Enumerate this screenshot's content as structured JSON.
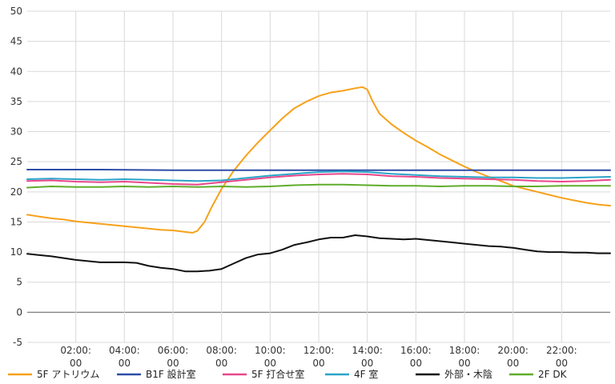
{
  "chart_data": {
    "type": "line",
    "title": "",
    "xlabel": "",
    "ylabel": "",
    "ylim": [
      -5,
      50
    ],
    "yticks": [
      -5,
      0,
      5,
      10,
      15,
      20,
      25,
      30,
      35,
      40,
      45,
      50
    ],
    "xlim": [
      0,
      24
    ],
    "xticks": [
      {
        "x": 2,
        "line1": "02:00:",
        "line2": "00"
      },
      {
        "x": 4,
        "line1": "04:00:",
        "line2": "00"
      },
      {
        "x": 6,
        "line1": "06:00:",
        "line2": "00"
      },
      {
        "x": 8,
        "line1": "08:00:",
        "line2": "00"
      },
      {
        "x": 10,
        "line1": "10:00:",
        "line2": "00"
      },
      {
        "x": 12,
        "line1": "12:00:",
        "line2": "00"
      },
      {
        "x": 14,
        "line1": "14:00:",
        "line2": "00"
      },
      {
        "x": 16,
        "line1": "16:00:",
        "line2": "00"
      },
      {
        "x": 18,
        "line1": "18:00:",
        "line2": "00"
      },
      {
        "x": 20,
        "line1": "20:00:",
        "line2": "00"
      },
      {
        "x": 22,
        "line1": "22:00:",
        "line2": "00"
      }
    ],
    "grid": true,
    "legend_position": "bottom",
    "series": [
      {
        "name": "5F アトリウム",
        "color": "#f7a11a",
        "x": [
          0,
          0.5,
          1,
          1.5,
          2,
          2.5,
          3,
          3.5,
          4,
          4.5,
          5,
          5.5,
          6,
          6.4,
          6.8,
          7.0,
          7.3,
          7.6,
          8.0,
          8.5,
          9.0,
          9.5,
          10.0,
          10.5,
          11.0,
          11.5,
          12.0,
          12.5,
          13.0,
          13.5,
          13.8,
          14.0,
          14.2,
          14.5,
          15.0,
          15.5,
          16.0,
          16.5,
          17.0,
          17.5,
          18.0,
          18.5,
          19.0,
          19.5,
          20.0,
          20.5,
          21.0,
          21.5,
          22.0,
          22.5,
          23.0,
          23.5,
          24.0
        ],
        "values": [
          16.2,
          15.9,
          15.6,
          15.4,
          15.1,
          14.9,
          14.7,
          14.5,
          14.3,
          14.1,
          13.9,
          13.7,
          13.6,
          13.4,
          13.2,
          13.5,
          15.0,
          17.5,
          20.5,
          23.5,
          26.0,
          28.2,
          30.2,
          32.2,
          33.9,
          35.0,
          35.9,
          36.5,
          36.8,
          37.2,
          37.4,
          37.0,
          35.2,
          33.0,
          31.2,
          29.8,
          28.5,
          27.4,
          26.2,
          25.2,
          24.2,
          23.3,
          22.5,
          21.8,
          21.0,
          20.5,
          20.0,
          19.5,
          19.0,
          18.6,
          18.2,
          17.9,
          17.7
        ]
      },
      {
        "name": "B1F 設計室",
        "color": "#2e4da7",
        "x": [
          0,
          3,
          6,
          9,
          12,
          15,
          18,
          21,
          24
        ],
        "values": [
          23.7,
          23.7,
          23.6,
          23.6,
          23.6,
          23.6,
          23.6,
          23.6,
          23.6
        ]
      },
      {
        "name": "5F 打合せ室",
        "color": "#e8478b",
        "x": [
          0,
          1,
          2,
          3,
          4,
          5,
          6,
          7,
          8,
          9,
          10,
          11,
          12,
          13,
          14,
          15,
          16,
          17,
          18,
          19,
          20,
          21,
          22,
          23,
          24
        ],
        "values": [
          21.8,
          21.9,
          21.7,
          21.6,
          21.7,
          21.5,
          21.3,
          21.2,
          21.6,
          22.0,
          22.4,
          22.7,
          22.9,
          23.0,
          22.9,
          22.6,
          22.5,
          22.3,
          22.2,
          22.1,
          22.0,
          21.8,
          21.7,
          21.8,
          22.0
        ]
      },
      {
        "name": "4F 室",
        "color": "#2aa3c8",
        "x": [
          0,
          1,
          2,
          3,
          4,
          5,
          6,
          7,
          8,
          9,
          10,
          11,
          12,
          13,
          14,
          15,
          16,
          17,
          18,
          19,
          20,
          21,
          22,
          23,
          24
        ],
        "values": [
          22.1,
          22.2,
          22.1,
          22.0,
          22.1,
          22.0,
          21.9,
          21.8,
          21.9,
          22.3,
          22.7,
          23.0,
          23.3,
          23.4,
          23.3,
          23.0,
          22.8,
          22.6,
          22.5,
          22.4,
          22.4,
          22.3,
          22.3,
          22.4,
          22.5
        ]
      },
      {
        "name": "外部・木陰",
        "color": "#111111",
        "x": [
          0,
          0.5,
          1,
          1.5,
          2,
          2.5,
          3,
          3.5,
          4,
          4.5,
          5,
          5.5,
          6,
          6.5,
          7,
          7.5,
          8,
          8.5,
          9,
          9.5,
          10,
          10.5,
          11,
          11.5,
          12,
          12.5,
          13,
          13.5,
          14,
          14.5,
          15,
          15.5,
          16,
          16.5,
          17,
          17.5,
          18,
          18.5,
          19,
          19.5,
          20,
          20.5,
          21,
          21.5,
          22,
          22.5,
          23,
          23.5,
          24
        ],
        "values": [
          9.7,
          9.5,
          9.3,
          9.0,
          8.7,
          8.5,
          8.3,
          8.3,
          8.3,
          8.2,
          7.7,
          7.4,
          7.2,
          6.8,
          6.8,
          6.9,
          7.2,
          8.1,
          9.0,
          9.6,
          9.8,
          10.4,
          11.2,
          11.6,
          12.1,
          12.4,
          12.4,
          12.8,
          12.6,
          12.3,
          12.2,
          12.1,
          12.2,
          12.0,
          11.8,
          11.6,
          11.4,
          11.2,
          11.0,
          10.9,
          10.7,
          10.4,
          10.1,
          10.0,
          10.0,
          9.9,
          9.9,
          9.8,
          9.8
        ]
      },
      {
        "name": "2F DK",
        "color": "#5fad2b",
        "x": [
          0,
          1,
          2,
          3,
          4,
          5,
          6,
          7,
          8,
          9,
          10,
          11,
          12,
          13,
          14,
          15,
          16,
          17,
          18,
          19,
          20,
          21,
          22,
          23,
          24
        ],
        "values": [
          20.7,
          20.9,
          20.8,
          20.8,
          20.9,
          20.8,
          20.9,
          20.8,
          20.9,
          20.8,
          20.9,
          21.1,
          21.2,
          21.2,
          21.1,
          21.0,
          21.0,
          20.9,
          21.0,
          21.0,
          20.9,
          20.9,
          21.0,
          21.0,
          21.0
        ]
      }
    ]
  }
}
